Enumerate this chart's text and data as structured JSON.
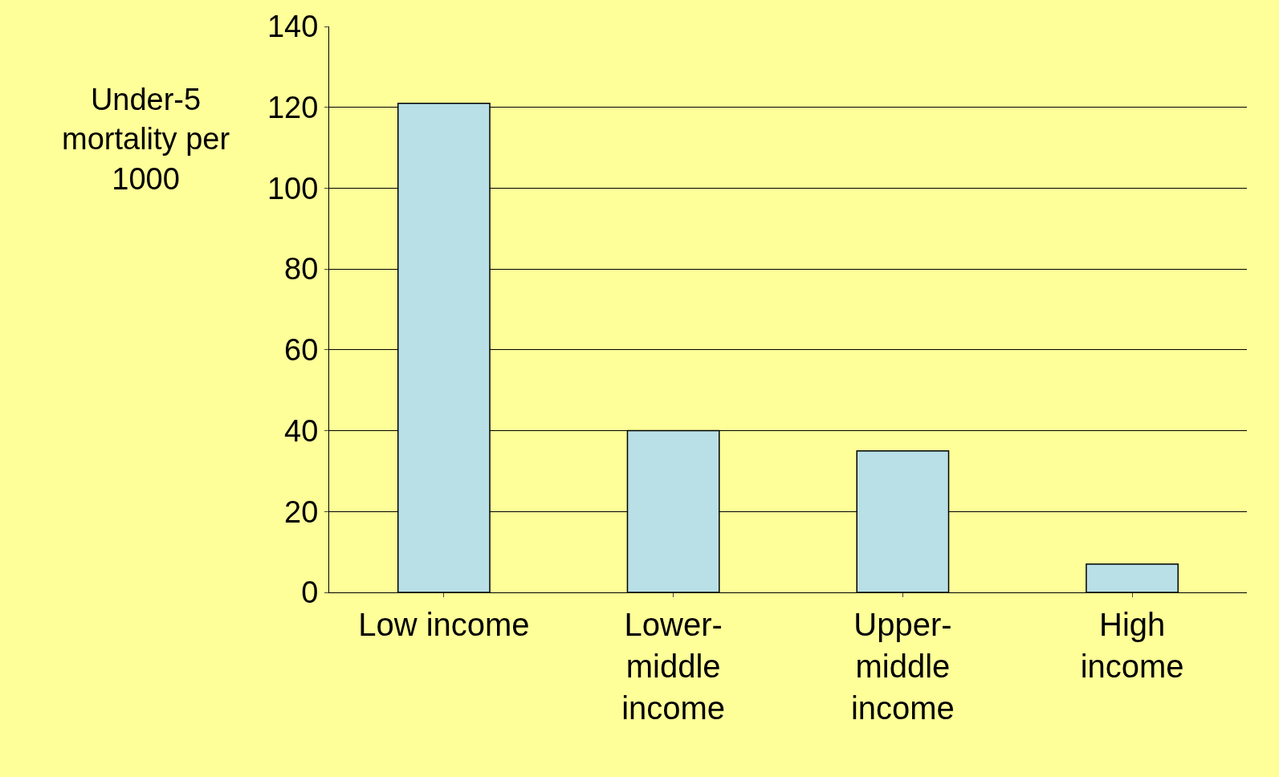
{
  "chart_data": {
    "type": "bar",
    "ylabel": "Under-5\nmortality per\n1000",
    "categories": [
      "Low income",
      "Lower-\nmiddle\nincome",
      "Upper-\nmiddle\nincome",
      "High\nincome"
    ],
    "values": [
      121,
      40,
      35,
      7
    ],
    "color": "#b8e0e6",
    "ylim": [
      0,
      140
    ],
    "yticks": [
      0,
      20,
      40,
      60,
      80,
      100,
      120,
      140
    ],
    "grid": "y"
  }
}
